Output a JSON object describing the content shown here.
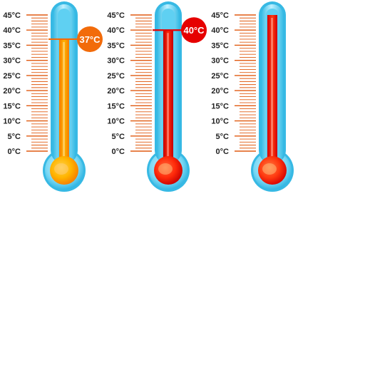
{
  "scale": {
    "min_c": 0,
    "max_c": 45,
    "unit": "°C",
    "tick_labels": [
      "45°C",
      "40°C",
      "35°C",
      "30°C",
      "25°C",
      "20°C",
      "15°C",
      "10°C",
      "5°C",
      "0°C"
    ]
  },
  "thermometers": [
    {
      "id": "thermometer-1",
      "reading_c": 37,
      "badge_label": "37°C",
      "marker_line": true,
      "fluid_colors": [
        "#f57b00",
        "#ffb400",
        "#ffd24a"
      ],
      "badge_color": "#f26b0a"
    },
    {
      "id": "thermometer-2",
      "reading_c": 40,
      "badge_label": "40°C",
      "marker_line": true,
      "fluid_colors": [
        "#c40000",
        "#ff2a0a",
        "#ff6a3a"
      ],
      "badge_color": "#e60000"
    },
    {
      "id": "thermometer-3",
      "reading_c": 45,
      "badge_label": "",
      "marker_line": false,
      "fluid_colors": [
        "#d40000",
        "#ff3a10",
        "#ff7a40"
      ],
      "badge_color": ""
    }
  ],
  "colors": {
    "tick": "#e05a10",
    "tick_label": "#222222",
    "glass_outer": "#47c8ec",
    "glass_inner": "#c8f2ff",
    "bulb_fluid": "#ff7a10"
  }
}
